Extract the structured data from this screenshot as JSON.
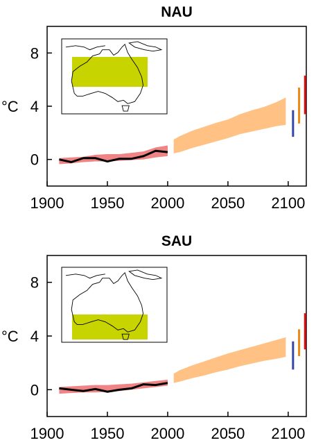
{
  "colors": {
    "observed_line": "#000000",
    "model_20c_band": "#ee7777",
    "projection_band": "#ffbb77",
    "inset_box": "#c8d400",
    "bar_b1": "#3344aa",
    "bar_a1b": "#ee8811",
    "bar_a2": "#dd1111"
  },
  "chart_data": [
    {
      "type": "line",
      "title": "NAU",
      "ylabel": "°C",
      "xlabel": "",
      "xlim": [
        1900,
        2115
      ],
      "ylim": [
        -2,
        10
      ],
      "xticks": [
        1900,
        1950,
        2000,
        2050,
        2100
      ],
      "yticks": [
        0,
        4,
        8
      ],
      "inset": {
        "type": "map",
        "region": "Australia",
        "highlight": "northern Australia box"
      },
      "observed": {
        "x": [
          1910,
          1920,
          1930,
          1940,
          1950,
          1960,
          1970,
          1980,
          1990,
          2000
        ],
        "y": [
          0.0,
          -0.2,
          0.1,
          0.1,
          -0.15,
          0.05,
          0.05,
          0.25,
          0.65,
          0.55
        ]
      },
      "model_20c": {
        "x": [
          1910,
          1920,
          1930,
          1940,
          1950,
          1960,
          1970,
          1980,
          1990,
          2000
        ],
        "lower": [
          -0.35,
          -0.3,
          -0.2,
          -0.15,
          -0.15,
          -0.1,
          -0.05,
          0.0,
          0.15,
          0.25
        ],
        "upper": [
          0.1,
          0.15,
          0.2,
          0.35,
          0.4,
          0.4,
          0.5,
          0.6,
          0.9,
          1.05
        ]
      },
      "projection": {
        "x": [
          2005,
          2010,
          2020,
          2030,
          2040,
          2050,
          2060,
          2070,
          2080,
          2090,
          2098
        ],
        "lower": [
          0.45,
          0.55,
          0.85,
          1.1,
          1.35,
          1.6,
          1.9,
          2.1,
          2.3,
          2.5,
          2.6
        ],
        "upper": [
          1.5,
          1.75,
          2.15,
          2.45,
          2.75,
          3.0,
          3.4,
          3.7,
          3.95,
          4.3,
          4.65
        ]
      },
      "scenario_bars": [
        {
          "x": 2104,
          "lower": 1.7,
          "upper": 3.7,
          "color_key": "bar_b1"
        },
        {
          "x": 2109,
          "lower": 2.7,
          "upper": 5.4,
          "color_key": "bar_a1b"
        },
        {
          "x": 2114,
          "lower": 3.4,
          "upper": 6.3,
          "color_key": "bar_a2"
        }
      ]
    },
    {
      "type": "line",
      "title": "SAU",
      "ylabel": "°C",
      "xlabel": "",
      "xlim": [
        1900,
        2115
      ],
      "ylim": [
        -2,
        10
      ],
      "xticks": [
        1900,
        1950,
        2000,
        2050,
        2100
      ],
      "yticks": [
        0,
        4,
        8
      ],
      "inset": {
        "type": "map",
        "region": "Australia",
        "highlight": "southern Australia box"
      },
      "observed": {
        "x": [
          1910,
          1920,
          1930,
          1940,
          1950,
          1960,
          1970,
          1980,
          1990,
          2000
        ],
        "y": [
          0.1,
          0.0,
          -0.1,
          0.05,
          -0.15,
          0.0,
          0.1,
          0.4,
          0.35,
          0.5
        ]
      },
      "model_20c": {
        "x": [
          1910,
          1920,
          1930,
          1940,
          1950,
          1960,
          1970,
          1980,
          1990,
          2000
        ],
        "lower": [
          -0.3,
          -0.25,
          -0.2,
          -0.2,
          -0.15,
          -0.1,
          0.0,
          0.1,
          0.2,
          0.3
        ],
        "upper": [
          0.2,
          0.25,
          0.3,
          0.35,
          0.35,
          0.4,
          0.45,
          0.55,
          0.65,
          0.75
        ]
      },
      "projection": {
        "x": [
          2005,
          2010,
          2020,
          2030,
          2040,
          2050,
          2060,
          2070,
          2080,
          2090,
          2098
        ],
        "lower": [
          0.5,
          0.6,
          0.85,
          1.05,
          1.3,
          1.5,
          1.75,
          1.95,
          2.15,
          2.3,
          2.45
        ],
        "upper": [
          1.2,
          1.45,
          1.8,
          2.1,
          2.4,
          2.7,
          2.95,
          3.2,
          3.45,
          3.7,
          3.9
        ]
      },
      "scenario_bars": [
        {
          "x": 2104,
          "lower": 1.5,
          "upper": 3.6,
          "color_key": "bar_b1"
        },
        {
          "x": 2109,
          "lower": 2.5,
          "upper": 4.5,
          "color_key": "bar_a1b"
        },
        {
          "x": 2114,
          "lower": 3.0,
          "upper": 5.7,
          "color_key": "bar_a2"
        }
      ]
    }
  ]
}
